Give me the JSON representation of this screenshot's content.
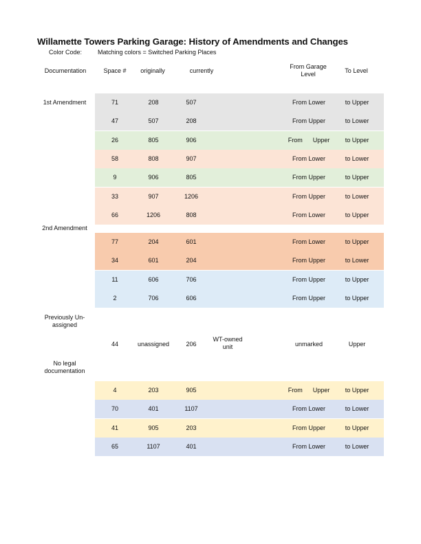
{
  "title": "Willamette Towers Parking Garage: History of Amendments and Changes",
  "color_code": {
    "label": "Color Code:",
    "text": "Matching colors = Switched Parking Places"
  },
  "columns": {
    "documentation": "Documentation",
    "space": "Space #",
    "originally": "originally",
    "currently": "currently",
    "from_level": "From Garage Level",
    "to_level": "To Level"
  },
  "sections": {
    "first": "1st Amendment",
    "second": "2nd Amendment",
    "previously": "Previously Un-assigned",
    "no_legal": "No legal documentation"
  },
  "colors": {
    "gray": "#e5e5e5",
    "green": "#e2efda",
    "peach": "#fce4d6",
    "orange": "#f8cbad",
    "blue": "#ddebf7",
    "yellow": "#fff2cc",
    "lavender": "#d9e1f2"
  },
  "rows_1st": [
    {
      "space": "71",
      "originally": "208",
      "currently": "507",
      "from": "From Lower",
      "to": "to Upper",
      "color": "gray"
    },
    {
      "space": "47",
      "originally": "507",
      "currently": "208",
      "from": "From Upper",
      "to": "to Lower",
      "color": "gray"
    },
    {
      "space": "26",
      "originally": "805",
      "currently": "906",
      "from": "From      Upper",
      "to": "to Upper",
      "color": "green"
    },
    {
      "space": "58",
      "originally": "808",
      "currently": "907",
      "from": "From Lower",
      "to": "to Lower",
      "color": "peach"
    },
    {
      "space": "9",
      "originally": "906",
      "currently": "805",
      "from": "From Upper",
      "to": "to Upper",
      "color": "green"
    },
    {
      "space": "33",
      "originally": "907",
      "currently": "1206",
      "from": "From Upper",
      "to": "to Lower",
      "color": "peach"
    },
    {
      "space": "66",
      "originally": "1206",
      "currently": "808",
      "from": "From Lower",
      "to": "to Upper",
      "color": "peach"
    }
  ],
  "rows_2nd": [
    {
      "space": "77",
      "originally": "204",
      "currently": "601",
      "from": "From Lower",
      "to": "to Upper",
      "color": "orange"
    },
    {
      "space": "34",
      "originally": "601",
      "currently": "204",
      "from": "From Upper",
      "to": "to Lower",
      "color": "orange"
    },
    {
      "space": "11",
      "originally": "606",
      "currently": "706",
      "from": "From Upper",
      "to": "to Upper",
      "color": "blue"
    },
    {
      "space": "2",
      "originally": "706",
      "currently": "606",
      "from": "From Upper",
      "to": "to Upper",
      "color": "blue"
    }
  ],
  "row_unassigned": {
    "space": "44",
    "originally": "unassigned",
    "currently": "206",
    "note": "WT-owned unit",
    "from": "unmarked",
    "to": "Upper"
  },
  "rows_nolegal": [
    {
      "space": "4",
      "originally": "203",
      "currently": "905",
      "from": "From      Upper",
      "to": "to Upper",
      "color": "yellow"
    },
    {
      "space": "70",
      "originally": "401",
      "currently": "1107",
      "from": "From Lower",
      "to": "to Lower",
      "color": "lavender"
    },
    {
      "space": "41",
      "originally": "905",
      "currently": "203",
      "from": "From Upper",
      "to": "to Upper",
      "color": "yellow"
    },
    {
      "space": "65",
      "originally": "1107",
      "currently": "401",
      "from": "From Lower",
      "to": "to Lower",
      "color": "lavender"
    }
  ]
}
